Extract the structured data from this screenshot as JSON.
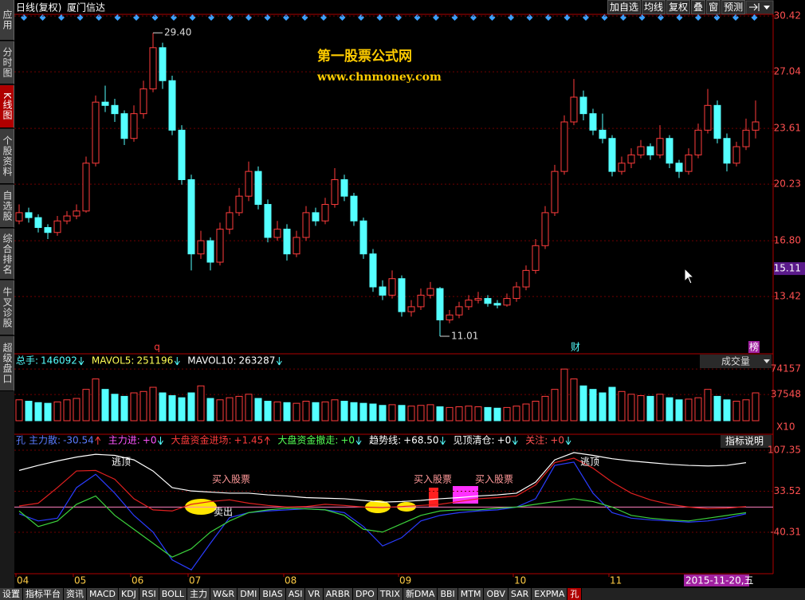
{
  "chart_data": {
    "type": "candlestick",
    "header": {
      "period": "日线(复权)",
      "stock": "厦门信达"
    },
    "tools": [
      "加自选",
      "均线",
      "复权",
      "叠",
      "窗",
      "预测"
    ],
    "side_tabs": [
      "应用",
      "分时图",
      "K线图",
      "个股资料",
      "自选股",
      "综合排名",
      "牛叉诊股",
      "超级盘口"
    ],
    "bottom_tabs": [
      "设置",
      "指标平台",
      "资讯",
      "MACD",
      "KDJ",
      "RSI",
      "BOLL",
      "主力",
      "W&R",
      "DMI",
      "BIAS",
      "ASI",
      "VR",
      "ARBR",
      "DPO",
      "TRIX",
      "新DMA",
      "BBI",
      "MTM",
      "OBV",
      "SAR",
      "EXPMA",
      "孔"
    ],
    "watermark": [
      "第一股票公式网",
      "www.chnmoney.com"
    ],
    "ylim": [
      10.14,
      30.81
    ],
    "yticks": [
      30.42,
      27.04,
      23.61,
      20.23,
      {
        "value": 16.8,
        "label": "16.80"
      },
      13.42
    ],
    "cursor_price": 15.11,
    "high_label": {
      "value": 29.4,
      "label": "29.40"
    },
    "low_label": 11.01,
    "markers": [
      "q",
      "财",
      "榜"
    ],
    "up_color": "#ff3c3c",
    "down_color": "#54ffff",
    "candles": [
      [
        18.0,
        19.0,
        17.8,
        18.5
      ],
      [
        18.5,
        18.8,
        17.9,
        18.2
      ],
      [
        18.2,
        18.4,
        17.3,
        17.6
      ],
      [
        17.6,
        17.8,
        16.9,
        17.3
      ],
      [
        17.3,
        18.3,
        17.1,
        18.0
      ],
      [
        18.0,
        18.6,
        17.8,
        18.3
      ],
      [
        18.3,
        19.0,
        18.1,
        18.6
      ],
      [
        18.6,
        21.9,
        18.5,
        21.5
      ],
      [
        21.5,
        25.6,
        21.3,
        25.2
      ],
      [
        25.2,
        26.2,
        24.6,
        25.0
      ],
      [
        25.0,
        25.4,
        24.0,
        24.5
      ],
      [
        24.5,
        24.7,
        22.6,
        23.0
      ],
      [
        23.0,
        25.0,
        22.8,
        24.5
      ],
      [
        24.5,
        26.5,
        24.2,
        26.0
      ],
      [
        26.0,
        29.4,
        25.8,
        28.5
      ],
      [
        28.5,
        28.8,
        26.0,
        26.5
      ],
      [
        26.5,
        26.8,
        23.2,
        23.5
      ],
      [
        23.5,
        23.8,
        20.2,
        20.5
      ],
      [
        20.5,
        20.8,
        15.0,
        16.0
      ],
      [
        16.0,
        17.4,
        15.7,
        16.8
      ],
      [
        16.8,
        17.0,
        15.0,
        15.5
      ],
      [
        15.5,
        17.9,
        15.3,
        17.5
      ],
      [
        17.5,
        18.9,
        17.2,
        18.5
      ],
      [
        18.5,
        20.0,
        18.3,
        19.5
      ],
      [
        19.5,
        21.6,
        19.2,
        21.0
      ],
      [
        21.0,
        21.3,
        18.7,
        19.0
      ],
      [
        19.0,
        19.3,
        16.7,
        17.0
      ],
      [
        17.0,
        18.0,
        16.8,
        17.5
      ],
      [
        17.5,
        17.8,
        15.6,
        16.0
      ],
      [
        16.0,
        17.4,
        15.8,
        17.0
      ],
      [
        17.0,
        18.9,
        16.8,
        18.5
      ],
      [
        18.5,
        18.8,
        17.7,
        18.0
      ],
      [
        18.0,
        19.4,
        17.8,
        19.0
      ],
      [
        19.0,
        21.2,
        18.8,
        20.5
      ],
      [
        20.5,
        20.8,
        19.2,
        19.5
      ],
      [
        19.5,
        19.7,
        17.7,
        18.0
      ],
      [
        18.0,
        18.2,
        15.7,
        16.0
      ],
      [
        16.0,
        16.3,
        13.7,
        14.0
      ],
      [
        14.0,
        14.4,
        13.2,
        13.5
      ],
      [
        13.5,
        15.0,
        13.3,
        14.5
      ],
      [
        14.5,
        14.7,
        12.2,
        12.5
      ],
      [
        12.5,
        13.2,
        12.2,
        12.8
      ],
      [
        12.8,
        13.9,
        12.6,
        13.5
      ],
      [
        13.5,
        14.3,
        13.3,
        13.9
      ],
      [
        13.9,
        14.0,
        11.01,
        12.0
      ],
      [
        12.0,
        12.6,
        11.8,
        12.3
      ],
      [
        12.3,
        13.1,
        12.1,
        12.8
      ],
      [
        12.8,
        13.5,
        12.6,
        13.2
      ],
      [
        13.2,
        13.7,
        13.0,
        13.3
      ],
      [
        13.3,
        13.5,
        12.8,
        13.0
      ],
      [
        13.0,
        13.2,
        12.7,
        12.9
      ],
      [
        12.9,
        13.6,
        12.8,
        13.3
      ],
      [
        13.3,
        14.3,
        13.1,
        14.0
      ],
      [
        14.0,
        15.3,
        13.8,
        15.0
      ],
      [
        15.0,
        16.9,
        14.8,
        16.5
      ],
      [
        16.5,
        18.9,
        16.3,
        18.5
      ],
      [
        18.5,
        21.4,
        18.3,
        21.0
      ],
      [
        21.0,
        24.4,
        20.8,
        24.0
      ],
      [
        24.0,
        26.6,
        23.8,
        25.5
      ],
      [
        25.5,
        25.9,
        24.1,
        24.5
      ],
      [
        24.5,
        24.8,
        23.2,
        23.5
      ],
      [
        23.5,
        24.5,
        22.7,
        23.0
      ],
      [
        23.0,
        23.2,
        20.7,
        21.0
      ],
      [
        21.0,
        21.9,
        20.8,
        21.5
      ],
      [
        21.5,
        22.4,
        21.2,
        22.0
      ],
      [
        22.0,
        22.9,
        21.8,
        22.5
      ],
      [
        22.5,
        22.7,
        21.7,
        22.0
      ],
      [
        22.0,
        23.8,
        21.8,
        23.0
      ],
      [
        23.0,
        23.2,
        21.2,
        21.5
      ],
      [
        21.5,
        21.7,
        20.6,
        21.0
      ],
      [
        21.0,
        22.4,
        20.8,
        22.0
      ],
      [
        22.0,
        23.9,
        21.8,
        23.5
      ],
      [
        23.5,
        26.0,
        23.3,
        25.0
      ],
      [
        25.0,
        25.3,
        22.7,
        23.0
      ],
      [
        23.0,
        23.3,
        21.0,
        21.5
      ],
      [
        21.5,
        22.8,
        21.3,
        22.5
      ],
      [
        22.5,
        24.2,
        22.3,
        23.5
      ],
      [
        23.5,
        25.3,
        23.0,
        24.0
      ]
    ],
    "x_labels": [
      "04",
      "05",
      "06",
      "07",
      "08",
      "09",
      "10",
      "11"
    ],
    "date_label": "2015-11-20,五",
    "volume": {
      "title": "成交量",
      "unit": "X10",
      "ylim": [
        0,
        83500
      ],
      "yticks": [
        74157,
        37548
      ],
      "items": [
        {
          "name": "总手:",
          "value": 146092,
          "trend": "down",
          "color": "#54ffff"
        },
        {
          "name": "MAVOL5:",
          "value": 251196,
          "trend": "down",
          "color": "#ffff54"
        },
        {
          "name": "MAVOL10:",
          "value": 263287,
          "trend": "down",
          "color": "#ffffff"
        }
      ],
      "values": [
        30000,
        28000,
        26000,
        25000,
        27000,
        30000,
        32000,
        45000,
        60000,
        45000,
        38000,
        35000,
        40000,
        42000,
        48000,
        40000,
        36000,
        33000,
        40000,
        50000,
        32000,
        30000,
        33000,
        35000,
        38000,
        32000,
        28000,
        27000,
        26000,
        25000,
        28000,
        26000,
        27000,
        30000,
        28000,
        26000,
        25000,
        24000,
        22000,
        23000,
        22000,
        21000,
        22000,
        23000,
        20000,
        19000,
        20000,
        21000,
        20000,
        19000,
        18000,
        19000,
        21000,
        24000,
        28000,
        35000,
        45000,
        74157,
        60000,
        50000,
        45000,
        40000,
        48000,
        42000,
        38000,
        36000,
        35000,
        38000,
        33000,
        30000,
        31000,
        33000,
        45000,
        35000,
        30000,
        28000,
        30000,
        40000
      ]
    },
    "indicator": {
      "name": "孔",
      "help": "指标说明",
      "ylim": [
        -114.9,
        121.7
      ],
      "yticks": [
        107.35,
        33.52,
        -40.31
      ],
      "ref_line": 5,
      "items": [
        {
          "name": "主力散:",
          "value": -30.54,
          "trend": "up",
          "color": "#5a7bff"
        },
        {
          "name": "主力进:",
          "value": 0,
          "label": "+0",
          "trend": "down",
          "color": "#ff54ff"
        },
        {
          "name": "大盘资金进场:",
          "value": 1.45,
          "label": "+1.45",
          "trend": "up",
          "color": "#ff3c3c"
        },
        {
          "name": "大盘资金撤走:",
          "value": 0,
          "label": "+0",
          "trend": "down",
          "color": "#54ff54"
        },
        {
          "name": "趋势线:",
          "value": 68.5,
          "label": "+68.50",
          "trend": "down",
          "color": "#ffffff"
        },
        {
          "name": "见顶清仓:",
          "value": 0,
          "label": "+0",
          "trend": "down",
          "color": "#ffffff"
        },
        {
          "name": "关注:",
          "value": 0,
          "label": "+0",
          "trend": "down",
          "color": "#ff5050"
        }
      ],
      "annotations": [
        "逃顶",
        "逃顶",
        "买入股票",
        "买入股票",
        "买入股票",
        "卖出"
      ],
      "series": [
        {
          "name": "趋势线",
          "color": "#ffffff",
          "values": [
            71,
            80,
            88,
            95,
            100,
            98,
            90,
            70,
            40,
            34,
            32,
            30,
            30,
            27,
            25,
            22,
            21,
            20,
            17,
            14,
            15,
            17,
            20,
            22,
            25,
            27,
            30,
            50,
            90,
            103,
            98,
            92,
            88,
            85,
            82,
            80,
            79,
            80,
            85
          ]
        },
        {
          "name": "红线",
          "color": "#e02020",
          "values": [
            7,
            12,
            40,
            70,
            71,
            55,
            20,
            0,
            -2,
            10,
            15,
            18,
            12,
            8,
            5,
            6,
            10,
            8,
            5,
            4,
            6,
            8,
            10,
            15,
            20,
            22,
            25,
            45,
            85,
            93,
            75,
            50,
            30,
            18,
            10,
            5,
            2,
            3,
            6
          ]
        },
        {
          "name": "蓝线",
          "color": "#2a3cff",
          "values": [
            -7,
            -20,
            -15,
            40,
            64,
            30,
            -10,
            -40,
            -90,
            -108,
            -60,
            -14,
            -5,
            -2,
            0,
            2,
            0,
            -5,
            -30,
            -65,
            -50,
            -20,
            -10,
            -5,
            -2,
            0,
            5,
            20,
            80,
            86,
            30,
            -5,
            -15,
            -18,
            -20,
            -22,
            -20,
            -15,
            -7
          ]
        },
        {
          "name": "绿线",
          "color": "#3cd23c",
          "values": [
            -2,
            -30,
            -20,
            10,
            25,
            -10,
            -35,
            -60,
            -85,
            -70,
            -40,
            -20,
            -5,
            0,
            3,
            2,
            0,
            -10,
            -35,
            -40,
            -25,
            -10,
            -2,
            0,
            0,
            3,
            5,
            10,
            15,
            20,
            15,
            5,
            -10,
            -15,
            -18,
            -20,
            -15,
            -10,
            -5
          ]
        }
      ]
    }
  }
}
